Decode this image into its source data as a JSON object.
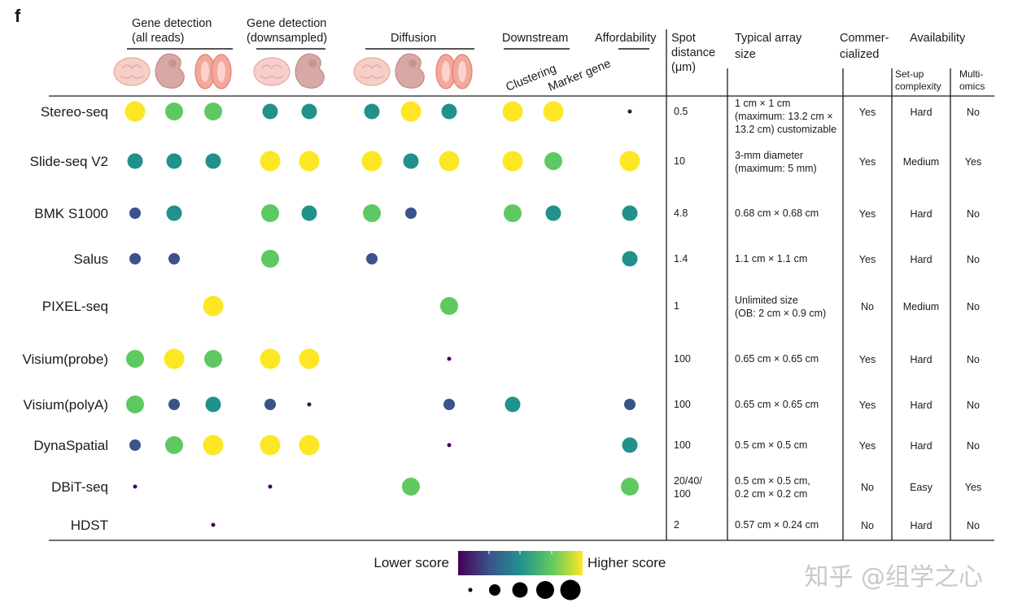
{
  "panel_label": "f",
  "column_groups": [
    {
      "label": [
        "Gene detection",
        "(all reads)"
      ]
    },
    {
      "label": [
        "Gene detection",
        "(downsampled)"
      ]
    },
    {
      "label": [
        "Diffusion"
      ]
    },
    {
      "label": [
        "Downstream"
      ]
    },
    {
      "label": [
        "Affordability"
      ]
    }
  ],
  "downstream_sublabels": [
    "Clustering",
    "Marker gene"
  ],
  "tissue_icons": [
    "mouse-brain-icon",
    "mouse-embryo-icon",
    "mouse-olfactory-bulb-icon"
  ],
  "table_headers": {
    "spot_distance": [
      "Spot",
      "distance",
      "(μm)"
    ],
    "typical_array_size": [
      "Typical array",
      "size"
    ],
    "commercialized": [
      "Commer-",
      "cialized"
    ],
    "availability": "Availability",
    "setup_complexity": [
      "Set-up",
      "complexity"
    ],
    "multi_omics": [
      "Multi-",
      "omics"
    ]
  },
  "legend": {
    "lower": "Lower score",
    "higher": "Higher score",
    "gradient": [
      "#440154",
      "#3b528b",
      "#21918c",
      "#5ec962",
      "#fde725"
    ]
  },
  "watermark": "知乎 @组学之心",
  "chart_data": {
    "type": "dot-matrix",
    "title": "",
    "color_scale": "viridis",
    "score_range": [
      1,
      5
    ],
    "score_colors": {
      "1": "#440154",
      "2": "#3b528b",
      "3": "#21918c",
      "4": "#5ec962",
      "5": "#fde725"
    },
    "columns": [
      "All reads: brain",
      "All reads: embryo",
      "All reads: olfactory bulb",
      "Downsampled: brain",
      "Downsampled: embryo",
      "Diffusion: brain",
      "Diffusion: embryo",
      "Diffusion: olfactory bulb",
      "Clustering",
      "Marker gene",
      "Affordability"
    ],
    "rows": [
      {
        "name": "Stereo-seq",
        "scores": [
          5,
          4,
          4,
          3,
          3,
          3,
          5,
          3,
          5,
          5,
          1
        ],
        "spot": "0.5",
        "size": [
          "1 cm × 1 cm",
          "(maximum: 13.2 cm ×",
          "13.2 cm) customizable"
        ],
        "commercialized": "Yes",
        "complexity": "Hard",
        "multiomics": "No"
      },
      {
        "name": "Slide-seq V2",
        "scores": [
          3,
          3,
          3,
          5,
          5,
          5,
          3,
          5,
          5,
          4,
          5
        ],
        "spot": "10",
        "size": [
          "3-mm diameter",
          "(maximum: 5 mm)"
        ],
        "commercialized": "Yes",
        "complexity": "Medium",
        "multiomics": "Yes"
      },
      {
        "name": "BMK S1000",
        "scores": [
          2,
          3,
          0,
          4,
          3,
          4,
          2,
          0,
          4,
          3,
          3
        ],
        "spot": "4.8",
        "size": [
          "0.68 cm × 0.68 cm"
        ],
        "commercialized": "Yes",
        "complexity": "Hard",
        "multiomics": "No"
      },
      {
        "name": "Salus",
        "scores": [
          2,
          2,
          0,
          4,
          0,
          2,
          0,
          0,
          0,
          0,
          3
        ],
        "spot": "1.4",
        "size": [
          "1.1 cm × 1.1 cm"
        ],
        "commercialized": "Yes",
        "complexity": "Hard",
        "multiomics": "No"
      },
      {
        "name": "PIXEL-seq",
        "scores": [
          0,
          0,
          5,
          0,
          0,
          0,
          0,
          4,
          0,
          0,
          0
        ],
        "spot": "1",
        "size": [
          "Unlimited size",
          "(OB: 2 cm × 0.9 cm)"
        ],
        "commercialized": "No",
        "complexity": "Medium",
        "multiomics": "No"
      },
      {
        "name": "Visium(probe)",
        "scores": [
          4,
          5,
          4,
          5,
          5,
          0,
          0,
          1,
          0,
          0,
          0
        ],
        "spot": "100",
        "size": [
          "0.65 cm × 0.65 cm"
        ],
        "commercialized": "Yes",
        "complexity": "Hard",
        "multiomics": "No"
      },
      {
        "name": "Visium(polyA)",
        "scores": [
          4,
          2,
          3,
          2,
          1,
          0,
          0,
          2,
          3,
          0,
          2
        ],
        "spot": "100",
        "size": [
          "0.65 cm × 0.65 cm"
        ],
        "commercialized": "Yes",
        "complexity": "Hard",
        "multiomics": "No"
      },
      {
        "name": "DynaSpatial",
        "scores": [
          2,
          4,
          5,
          5,
          5,
          0,
          0,
          1,
          0,
          0,
          3
        ],
        "spot": "100",
        "size": [
          "0.5 cm × 0.5 cm"
        ],
        "commercialized": "Yes",
        "complexity": "Hard",
        "multiomics": "No"
      },
      {
        "name": "DBiT-seq",
        "scores": [
          1,
          0,
          0,
          1,
          0,
          0,
          4,
          0,
          0,
          0,
          4
        ],
        "spot": "20/40/100",
        "size": [
          "0.5 cm × 0.5 cm,",
          "0.2 cm × 0.2 cm"
        ],
        "commercialized": "No",
        "complexity": "Easy",
        "multiomics": "Yes"
      },
      {
        "name": "HDST",
        "scores": [
          0,
          0,
          1,
          0,
          0,
          0,
          0,
          0,
          0,
          0,
          0
        ],
        "spot": "2",
        "size": [
          "0.57 cm × 0.24 cm"
        ],
        "commercialized": "No",
        "complexity": "Hard",
        "multiomics": "No"
      }
    ],
    "spot_display": {
      "DBiT-seq": [
        "20/40/",
        "100"
      ]
    },
    "size_legend": [
      1,
      2,
      3,
      4,
      5
    ]
  }
}
